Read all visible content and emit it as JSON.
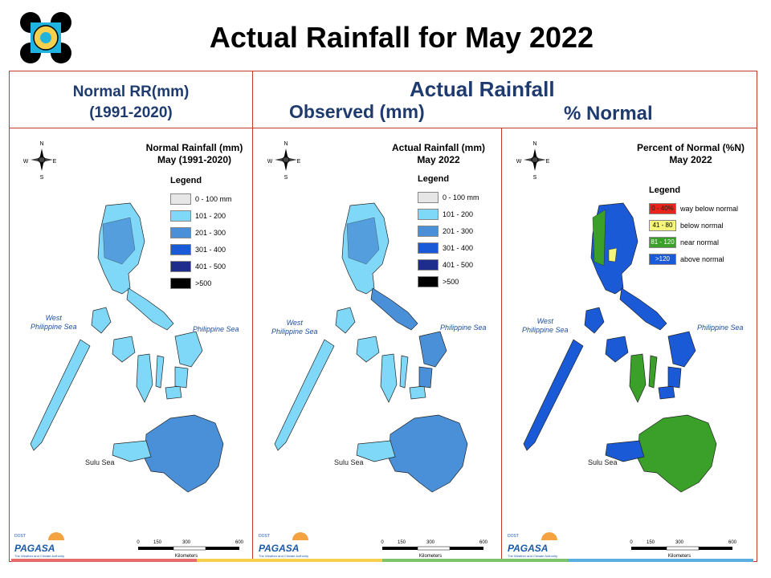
{
  "title": "Actual Rainfall for May 2022",
  "header": {
    "normal_line1": "Normal RR(mm)",
    "normal_line2": "(1991-2020)",
    "actual": "Actual Rainfall",
    "observed": "Observed (mm)",
    "percent": "% Normal"
  },
  "panels": [
    {
      "title1": "Normal Rainfall (mm)",
      "title2": "May (1991-2020)",
      "legend_title": "Legend",
      "legend": [
        {
          "label": "0 - 100 mm",
          "color": "#e6e6e6"
        },
        {
          "label": "101 - 200",
          "color": "#7fd8f7"
        },
        {
          "label": "201 - 300",
          "color": "#4a90d9"
        },
        {
          "label": "301 - 400",
          "color": "#1a5ad6"
        },
        {
          "label": "401 - 500",
          "color": "#1e2d8c"
        },
        {
          "label": ">500",
          "color": "#000000"
        }
      ]
    },
    {
      "title1": "Actual Rainfall (mm)",
      "title2": "May 2022",
      "legend_title": "Legend",
      "legend": [
        {
          "label": "0 - 100 mm",
          "color": "#e6e6e6"
        },
        {
          "label": "101 - 200",
          "color": "#7fd8f7"
        },
        {
          "label": "201 - 300",
          "color": "#4a90d9"
        },
        {
          "label": "301 - 400",
          "color": "#1a5ad6"
        },
        {
          "label": "401 - 500",
          "color": "#1e2d8c"
        },
        {
          "label": ">500",
          "color": "#000000"
        }
      ]
    },
    {
      "title1": "Percent of Normal (%N)",
      "title2": "May 2022",
      "legend_title": "Legend",
      "legend": [
        {
          "range": "0 - 40%",
          "label": "way below normal",
          "color": "#e8241c"
        },
        {
          "range": "41 - 80",
          "label": "below normal",
          "color": "#f5f57a"
        },
        {
          "range": "81 - 120",
          "label": "near normal",
          "color": "#3aa02a"
        },
        {
          "range": ">120",
          "label": "above normal",
          "color": "#1a5ad6"
        }
      ]
    }
  ],
  "seas": {
    "west": "West\nPhilippine Sea",
    "east": "Philippine Sea",
    "sulu": "Sulu Sea"
  },
  "scale": {
    "ticks": [
      "0",
      "150",
      "300",
      "600"
    ],
    "unit": "Kilometers"
  },
  "compass": {
    "n": "N",
    "s": "S",
    "e": "E",
    "w": "W"
  },
  "brand": {
    "name": "PAGASA",
    "dost": "DOST",
    "tagline": "The Weather and Climate Authority"
  },
  "bar_colors": [
    "#e86b6b",
    "#f4d04c",
    "#7cc36b",
    "#5aaee0"
  ]
}
